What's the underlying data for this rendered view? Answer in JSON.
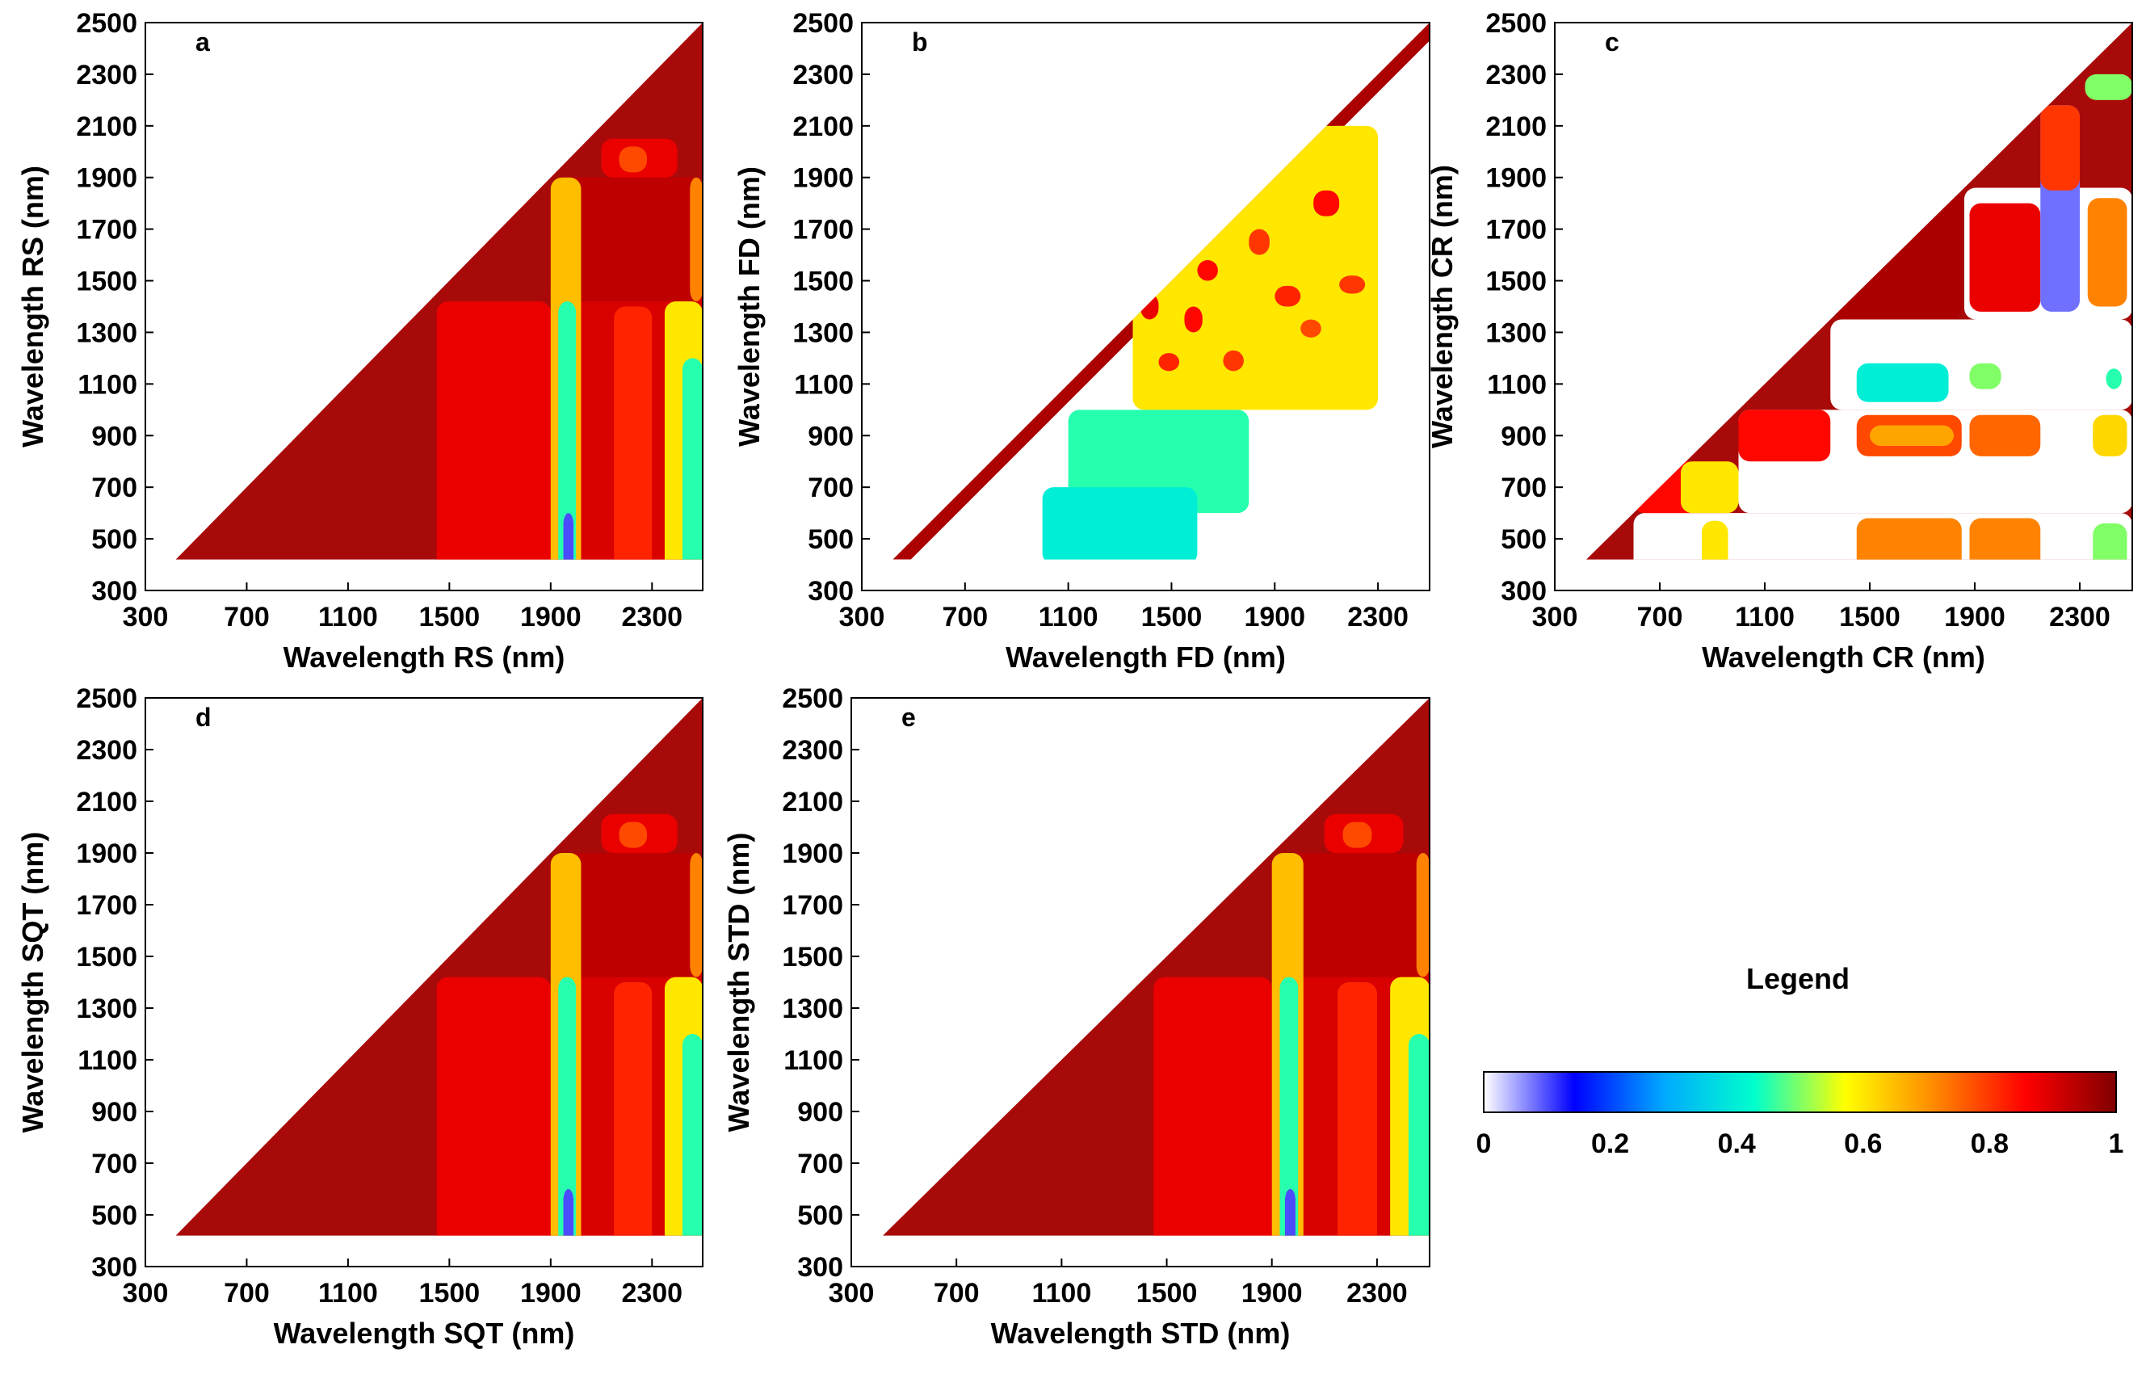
{
  "chart_data": [
    {
      "type": "heatmap",
      "panel": "a",
      "xlabel": "Wavelength RS (nm)",
      "ylabel": "Wavelength RS (nm)",
      "xlim": [
        300,
        2500
      ],
      "ylim": [
        300,
        2500
      ],
      "xticks": [
        "300",
        "700",
        "1100",
        "1500",
        "1900",
        "2300"
      ],
      "yticks": [
        "300",
        "500",
        "700",
        "900",
        "1100",
        "1300",
        "1500",
        "1700",
        "1900",
        "2100",
        "2300",
        "2500"
      ],
      "xticks_values": [
        300,
        700,
        1100,
        1500,
        1900,
        2300
      ],
      "yticks_values": [
        300,
        500,
        700,
        900,
        1100,
        1300,
        1500,
        1700,
        1900,
        2100,
        2300,
        2500
      ],
      "regions": [
        {
          "x": [
            1450,
            1900
          ],
          "y": [
            300,
            1420
          ],
          "value": 0.88
        },
        {
          "x": [
            1900,
            2500
          ],
          "y": [
            300,
            1900
          ],
          "value": 0.9
        },
        {
          "x": [
            1900,
            2500
          ],
          "y": [
            1420,
            1900
          ],
          "value": 0.93
        },
        {
          "x": [
            1900,
            2020
          ],
          "y": [
            300,
            1900
          ],
          "value": 0.65
        },
        {
          "x": [
            1930,
            2000
          ],
          "y": [
            300,
            1420
          ],
          "value": 0.45
        },
        {
          "x": [
            1950,
            1990
          ],
          "y": [
            300,
            600
          ],
          "value": 0.1
        },
        {
          "x": [
            2150,
            2300
          ],
          "y": [
            300,
            1400
          ],
          "value": 0.82
        },
        {
          "x": [
            2350,
            2500
          ],
          "y": [
            300,
            1420
          ],
          "value": 0.6
        },
        {
          "x": [
            2420,
            2500
          ],
          "y": [
            300,
            1200
          ],
          "value": 0.45
        },
        {
          "x": [
            2450,
            2500
          ],
          "y": [
            1420,
            1900
          ],
          "value": 0.72
        },
        {
          "x": [
            2100,
            2400
          ],
          "y": [
            1900,
            2050
          ],
          "value": 0.88
        },
        {
          "x": [
            2170,
            2280
          ],
          "y": [
            1920,
            2020
          ],
          "value": 0.78
        }
      ]
    },
    {
      "type": "heatmap",
      "panel": "b",
      "xlabel": "Wavelength FD (nm)",
      "ylabel": "Wavelength FD (nm)",
      "xlim": [
        300,
        2500
      ],
      "ylim": [
        300,
        2500
      ],
      "xticks": [
        "300",
        "700",
        "1100",
        "1500",
        "1900",
        "2300"
      ],
      "yticks": [
        "300",
        "500",
        "700",
        "900",
        "1100",
        "1300",
        "1500",
        "1700",
        "1900",
        "2100",
        "2300",
        "2500"
      ],
      "xticks_values": [
        300,
        700,
        1100,
        1500,
        1900,
        2300
      ],
      "yticks_values": [
        300,
        500,
        700,
        900,
        1100,
        1300,
        1500,
        1700,
        1900,
        2100,
        2300,
        2500
      ],
      "regions": [
        {
          "x": [
            1350,
            2300
          ],
          "y": [
            1000,
            2100
          ],
          "value": 0.6
        },
        {
          "x": [
            1380,
            1450
          ],
          "y": [
            1350,
            1450
          ],
          "value": 0.88
        },
        {
          "x": [
            1550,
            1620
          ],
          "y": [
            1300,
            1400
          ],
          "value": 0.85
        },
        {
          "x": [
            1800,
            1880
          ],
          "y": [
            1600,
            1700
          ],
          "value": 0.8
        },
        {
          "x": [
            2050,
            2150
          ],
          "y": [
            1750,
            1850
          ],
          "value": 0.85
        },
        {
          "x": [
            1600,
            1680
          ],
          "y": [
            1500,
            1580
          ],
          "value": 0.85
        },
        {
          "x": [
            1900,
            2000
          ],
          "y": [
            1400,
            1480
          ],
          "value": 0.82
        },
        {
          "x": [
            2150,
            2250
          ],
          "y": [
            1450,
            1520
          ],
          "value": 0.8
        },
        {
          "x": [
            1700,
            1780
          ],
          "y": [
            1150,
            1230
          ],
          "value": 0.8
        },
        {
          "x": [
            1450,
            1530
          ],
          "y": [
            1150,
            1220
          ],
          "value": 0.82
        },
        {
          "x": [
            2000,
            2080
          ],
          "y": [
            1280,
            1350
          ],
          "value": 0.78
        },
        {
          "x": [
            1100,
            1800
          ],
          "y": [
            600,
            1000
          ],
          "value": 0.45
        },
        {
          "x": [
            1000,
            1600
          ],
          "y": [
            400,
            700
          ],
          "value": 0.4
        },
        {
          "x": [
            2100,
            2250
          ],
          "y": [
            2000,
            2100
          ],
          "value": 0.6
        }
      ]
    },
    {
      "type": "heatmap",
      "panel": "c",
      "xlabel": "Wavelength CR (nm)",
      "ylabel": "Wavelength CR (nm)",
      "xlim": [
        300,
        2500
      ],
      "ylim": [
        300,
        2500
      ],
      "xticks": [
        "300",
        "700",
        "1100",
        "1500",
        "1900",
        "2300"
      ],
      "yticks": [
        "300",
        "500",
        "700",
        "900",
        "1100",
        "1300",
        "1500",
        "1700",
        "1900",
        "2100",
        "2300",
        "2500"
      ],
      "xticks_values": [
        300,
        700,
        1100,
        1500,
        1900,
        2300
      ],
      "yticks_values": [
        300,
        500,
        700,
        900,
        1100,
        1300,
        1500,
        1700,
        1900,
        2100,
        2300,
        2500
      ],
      "regions": [
        {
          "x": [
            600,
            2500
          ],
          "y": [
            300,
            600
          ],
          "value": 0
        },
        {
          "x": [
            1000,
            2500
          ],
          "y": [
            600,
            1000
          ],
          "value": 0
        },
        {
          "x": [
            1350,
            2500
          ],
          "y": [
            1000,
            1350
          ],
          "value": 0
        },
        {
          "x": [
            1860,
            2500
          ],
          "y": [
            1350,
            1860
          ],
          "value": 0
        },
        {
          "x": [
            1360,
            1850
          ],
          "y": [
            1350,
            1850
          ],
          "value": 0.95
        },
        {
          "x": [
            1880,
            2150
          ],
          "y": [
            1380,
            1800
          ],
          "value": 0.88
        },
        {
          "x": [
            2150,
            2300
          ],
          "y": [
            1380,
            2180
          ],
          "value": 0.08
        },
        {
          "x": [
            2330,
            2480
          ],
          "y": [
            1400,
            1820
          ],
          "value": 0.72
        },
        {
          "x": [
            2150,
            2300
          ],
          "y": [
            1850,
            2180
          ],
          "value": 0.8
        },
        {
          "x": [
            2320,
            2500
          ],
          "y": [
            2200,
            2300
          ],
          "value": 0.5
        },
        {
          "x": [
            1000,
            1350
          ],
          "y": [
            800,
            1000
          ],
          "value": 0.85
        },
        {
          "x": [
            600,
            1000
          ],
          "y": [
            600,
            800
          ],
          "value": 0.85
        },
        {
          "x": [
            780,
            1000
          ],
          "y": [
            600,
            800
          ],
          "value": 0.6
        },
        {
          "x": [
            1450,
            1850
          ],
          "y": [
            820,
            980
          ],
          "value": 0.78
        },
        {
          "x": [
            1500,
            1820
          ],
          "y": [
            860,
            940
          ],
          "value": 0.68
        },
        {
          "x": [
            1880,
            2150
          ],
          "y": [
            820,
            980
          ],
          "value": 0.75
        },
        {
          "x": [
            2350,
            2480
          ],
          "y": [
            820,
            980
          ],
          "value": 0.62
        },
        {
          "x": [
            1450,
            1850
          ],
          "y": [
            300,
            580
          ],
          "value": 0.72
        },
        {
          "x": [
            1880,
            2150
          ],
          "y": [
            300,
            580
          ],
          "value": 0.72
        },
        {
          "x": [
            2350,
            2480
          ],
          "y": [
            300,
            560
          ],
          "value": 0.5
        },
        {
          "x": [
            860,
            960
          ],
          "y": [
            300,
            570
          ],
          "value": 0.6
        },
        {
          "x": [
            1450,
            1800
          ],
          "y": [
            1030,
            1180
          ],
          "value": 0.4
        },
        {
          "x": [
            1880,
            2000
          ],
          "y": [
            1080,
            1180
          ],
          "value": 0.5
        },
        {
          "x": [
            2400,
            2460
          ],
          "y": [
            1080,
            1160
          ],
          "value": 0.45
        }
      ]
    },
    {
      "type": "heatmap",
      "panel": "d",
      "xlabel": "Wavelength SQT (nm)",
      "ylabel": "Wavelength SQT (nm)",
      "xlim": [
        300,
        2500
      ],
      "ylim": [
        300,
        2500
      ],
      "xticks": [
        "300",
        "700",
        "1100",
        "1500",
        "1900",
        "2300"
      ],
      "yticks": [
        "300",
        "500",
        "700",
        "900",
        "1100",
        "1300",
        "1500",
        "1700",
        "1900",
        "2100",
        "2300",
        "2500"
      ],
      "xticks_values": [
        300,
        700,
        1100,
        1500,
        1900,
        2300
      ],
      "yticks_values": [
        300,
        500,
        700,
        900,
        1100,
        1300,
        1500,
        1700,
        1900,
        2100,
        2300,
        2500
      ],
      "regions": [
        {
          "x": [
            1450,
            1900
          ],
          "y": [
            300,
            1420
          ],
          "value": 0.88
        },
        {
          "x": [
            1900,
            2500
          ],
          "y": [
            300,
            1900
          ],
          "value": 0.9
        },
        {
          "x": [
            1900,
            2500
          ],
          "y": [
            1420,
            1900
          ],
          "value": 0.93
        },
        {
          "x": [
            1900,
            2020
          ],
          "y": [
            300,
            1900
          ],
          "value": 0.65
        },
        {
          "x": [
            1930,
            2000
          ],
          "y": [
            300,
            1420
          ],
          "value": 0.45
        },
        {
          "x": [
            1950,
            1990
          ],
          "y": [
            300,
            600
          ],
          "value": 0.1
        },
        {
          "x": [
            2150,
            2300
          ],
          "y": [
            300,
            1400
          ],
          "value": 0.82
        },
        {
          "x": [
            2350,
            2500
          ],
          "y": [
            300,
            1420
          ],
          "value": 0.6
        },
        {
          "x": [
            2420,
            2500
          ],
          "y": [
            300,
            1200
          ],
          "value": 0.45
        },
        {
          "x": [
            2450,
            2500
          ],
          "y": [
            1420,
            1900
          ],
          "value": 0.72
        },
        {
          "x": [
            2100,
            2400
          ],
          "y": [
            1900,
            2050
          ],
          "value": 0.88
        },
        {
          "x": [
            2170,
            2280
          ],
          "y": [
            1920,
            2020
          ],
          "value": 0.78
        }
      ]
    },
    {
      "type": "heatmap",
      "panel": "e",
      "xlabel": "Wavelength STD (nm)",
      "ylabel": "Wavelength STD (nm)",
      "xlim": [
        300,
        2500
      ],
      "ylim": [
        300,
        2500
      ],
      "xticks": [
        "300",
        "700",
        "1100",
        "1500",
        "1900",
        "2300"
      ],
      "yticks": [
        "300",
        "500",
        "700",
        "900",
        "1100",
        "1300",
        "1500",
        "1700",
        "1900",
        "2100",
        "2300",
        "2500"
      ],
      "xticks_values": [
        300,
        700,
        1100,
        1500,
        1900,
        2300
      ],
      "yticks_values": [
        300,
        500,
        700,
        900,
        1100,
        1300,
        1500,
        1700,
        1900,
        2100,
        2300,
        2500
      ],
      "regions": [
        {
          "x": [
            1450,
            1900
          ],
          "y": [
            300,
            1420
          ],
          "value": 0.88
        },
        {
          "x": [
            1900,
            2500
          ],
          "y": [
            300,
            1900
          ],
          "value": 0.9
        },
        {
          "x": [
            1900,
            2500
          ],
          "y": [
            1420,
            1900
          ],
          "value": 0.93
        },
        {
          "x": [
            1900,
            2020
          ],
          "y": [
            300,
            1900
          ],
          "value": 0.65
        },
        {
          "x": [
            1930,
            2000
          ],
          "y": [
            300,
            1420
          ],
          "value": 0.45
        },
        {
          "x": [
            1950,
            1990
          ],
          "y": [
            300,
            600
          ],
          "value": 0.1
        },
        {
          "x": [
            2150,
            2300
          ],
          "y": [
            300,
            1400
          ],
          "value": 0.82
        },
        {
          "x": [
            2350,
            2500
          ],
          "y": [
            300,
            1420
          ],
          "value": 0.6
        },
        {
          "x": [
            2420,
            2500
          ],
          "y": [
            300,
            1200
          ],
          "value": 0.45
        },
        {
          "x": [
            2450,
            2500
          ],
          "y": [
            1420,
            1900
          ],
          "value": 0.72
        },
        {
          "x": [
            2100,
            2400
          ],
          "y": [
            1900,
            2050
          ],
          "value": 0.88
        },
        {
          "x": [
            2170,
            2280
          ],
          "y": [
            1920,
            2020
          ],
          "value": 0.78
        }
      ]
    }
  ],
  "legend": {
    "title": "Legend",
    "ticks": [
      "0",
      "0.2",
      "0.4",
      "0.6",
      "0.8",
      "1"
    ],
    "tick_values": [
      0,
      0.2,
      0.4,
      0.6,
      0.8,
      1
    ],
    "range": [
      0,
      1
    ],
    "colormap": [
      "#ffffff",
      "#0000ff",
      "#00aaff",
      "#00ffcc",
      "#ffff00",
      "#ff8800",
      "#ff0000",
      "#800000"
    ]
  },
  "colors": {
    "base": "#a80a0a",
    "dark_red": "#8b0000",
    "frame": "#000000"
  }
}
